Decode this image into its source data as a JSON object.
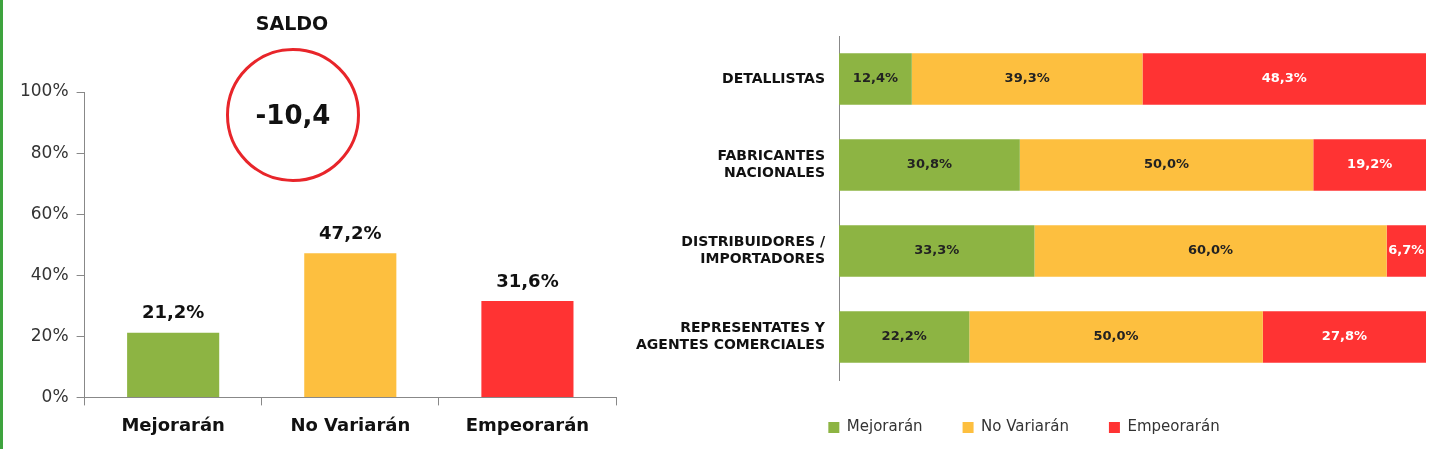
{
  "chart_data": [
    {
      "type": "bar",
      "title": "SALDO",
      "annotations": [
        "-10,4"
      ],
      "categories": [
        "Mejorarán",
        "No Variarán",
        "Empeorarán"
      ],
      "values": [
        21.2,
        47.2,
        31.6
      ],
      "colors": [
        "#8db443",
        "#fdbf3f",
        "#ff3333"
      ],
      "value_labels": [
        "21,2%",
        "47,2%",
        "31,6%"
      ],
      "ylim": [
        0,
        100
      ],
      "yticks": [
        {
          "value": 0,
          "label": "0%"
        },
        {
          "value": 20,
          "label": "20%"
        },
        {
          "value": 40,
          "label": "40%"
        },
        {
          "value": 60,
          "label": "60%"
        },
        {
          "value": 80,
          "label": "80%"
        },
        {
          "value": 100,
          "label": "100%"
        }
      ],
      "grid": false,
      "legend": false
    },
    {
      "type": "bar",
      "orientation": "horizontal",
      "stacked": true,
      "categories": [
        "DETALLISTAS",
        "FABRICANTES\nNACIONALES",
        "DISTRIBUIDORES /\nIMPORTADORES",
        "REPRESENTATES Y\nAGENTES COMERCIALES"
      ],
      "series": [
        {
          "name": "Mejorarán",
          "color": "#8db443",
          "values": [
            12.4,
            30.8,
            33.3,
            22.2
          ],
          "value_labels": [
            "12,4%",
            "30,8%",
            "33,3%",
            "22,2%"
          ]
        },
        {
          "name": "No Variarán",
          "color": "#fdbf3f",
          "values": [
            39.3,
            50.0,
            60.0,
            50.0
          ],
          "value_labels": [
            "39,3%",
            "50,0%",
            "60,0%",
            "50,0%"
          ]
        },
        {
          "name": "Empeorarán",
          "color": "#ff3333",
          "values": [
            48.3,
            19.2,
            6.7,
            27.8
          ],
          "value_labels": [
            "48,3%",
            "19,2%",
            "6,7%",
            "27,8%"
          ]
        }
      ],
      "xlim": [
        0,
        100
      ],
      "tick_labels": "y",
      "grid": false,
      "legend": "bottom"
    }
  ]
}
